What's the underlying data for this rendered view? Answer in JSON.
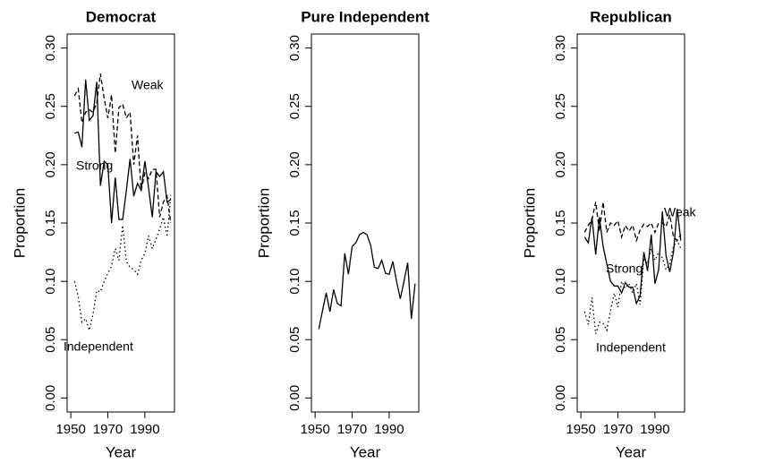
{
  "chart_data": [
    {
      "type": "line",
      "title": "Democrat",
      "xlabel": "Year",
      "ylabel": "Proportion",
      "x": [
        1952,
        1954,
        1956,
        1958,
        1960,
        1962,
        1964,
        1966,
        1968,
        1970,
        1972,
        1974,
        1976,
        1978,
        1980,
        1982,
        1984,
        1986,
        1988,
        1990,
        1992,
        1994,
        1996,
        1998,
        2000,
        2002,
        2004
      ],
      "xlim": [
        1948,
        2006
      ],
      "xticks": [
        1950,
        1970,
        1990
      ],
      "ylim": [
        -0.012,
        0.312
      ],
      "yticks": [
        {
          "value": 0,
          "label": "0.00"
        },
        {
          "value": 0.05,
          "label": "0.05"
        },
        {
          "value": 0.1,
          "label": "0.10"
        },
        {
          "value": 0.15,
          "label": "0.15"
        },
        {
          "value": 0.2,
          "label": "0.20"
        },
        {
          "value": 0.25,
          "label": "0.25"
        },
        {
          "value": 0.3,
          "label": "0.30"
        }
      ],
      "series": [
        {
          "name": "Weak",
          "color": "#000000",
          "linestyle": "dashed",
          "values": [
            0.259,
            0.265,
            0.236,
            0.245,
            0.247,
            0.245,
            0.253,
            0.278,
            0.257,
            0.24,
            0.26,
            0.21,
            0.249,
            0.252,
            0.24,
            0.245,
            0.2,
            0.225,
            0.178,
            0.193,
            0.188,
            0.196,
            0.196,
            0.155,
            0.168,
            0.173,
            0.15
          ]
        },
        {
          "name": "Strong",
          "color": "#000000",
          "linestyle": "solid",
          "values": [
            0.227,
            0.228,
            0.215,
            0.273,
            0.238,
            0.242,
            0.271,
            0.182,
            0.203,
            0.2,
            0.15,
            0.189,
            0.153,
            0.153,
            0.178,
            0.205,
            0.173,
            0.184,
            0.178,
            0.203,
            0.18,
            0.155,
            0.194,
            0.19,
            0.194,
            0.168,
            0.17
          ]
        },
        {
          "name": "Independent",
          "color": "#000000",
          "linestyle": "dotted",
          "values": [
            0.1,
            0.087,
            0.065,
            0.068,
            0.058,
            0.072,
            0.092,
            0.091,
            0.1,
            0.107,
            0.113,
            0.128,
            0.118,
            0.148,
            0.117,
            0.112,
            0.11,
            0.106,
            0.118,
            0.124,
            0.139,
            0.128,
            0.136,
            0.145,
            0.155,
            0.138,
            0.174
          ]
        }
      ]
    },
    {
      "type": "line",
      "title": "Pure Independent",
      "xlabel": "Year",
      "ylabel": "Proportion",
      "x": [
        1952,
        1954,
        1956,
        1958,
        1960,
        1962,
        1964,
        1966,
        1968,
        1970,
        1972,
        1974,
        1976,
        1978,
        1980,
        1982,
        1984,
        1986,
        1988,
        1990,
        1992,
        1994,
        1996,
        1998,
        2000,
        2002,
        2004
      ],
      "xlim": [
        1948,
        2006
      ],
      "xticks": [
        1950,
        1970,
        1990
      ],
      "ylim": [
        -0.012,
        0.312
      ],
      "yticks": [
        {
          "value": 0,
          "label": "0.00"
        },
        {
          "value": 0.05,
          "label": "0.05"
        },
        {
          "value": 0.1,
          "label": "0.10"
        },
        {
          "value": 0.15,
          "label": "0.15"
        },
        {
          "value": 0.2,
          "label": "0.20"
        },
        {
          "value": 0.25,
          "label": "0.25"
        },
        {
          "value": 0.3,
          "label": "0.30"
        }
      ],
      "series": [
        {
          "color": "#000000",
          "linestyle": "solid",
          "values": [
            0.059,
            0.075,
            0.09,
            0.074,
            0.093,
            0.081,
            0.079,
            0.124,
            0.106,
            0.13,
            0.133,
            0.14,
            0.142,
            0.14,
            0.131,
            0.112,
            0.111,
            0.118,
            0.107,
            0.106,
            0.117,
            0.1,
            0.085,
            0.1,
            0.116,
            0.068,
            0.098
          ]
        }
      ]
    },
    {
      "type": "line",
      "title": "Republican",
      "xlabel": "Year",
      "ylabel": "Proportion",
      "x": [
        1952,
        1954,
        1956,
        1958,
        1960,
        1962,
        1964,
        1966,
        1968,
        1970,
        1972,
        1974,
        1976,
        1978,
        1980,
        1982,
        1984,
        1986,
        1988,
        1990,
        1992,
        1994,
        1996,
        1998,
        2000,
        2002,
        2004
      ],
      "xlim": [
        1948,
        2006
      ],
      "xticks": [
        1950,
        1970,
        1990
      ],
      "ylim": [
        -0.012,
        0.312
      ],
      "yticks": [
        {
          "value": 0,
          "label": "0.00"
        },
        {
          "value": 0.05,
          "label": "0.05"
        },
        {
          "value": 0.1,
          "label": "0.10"
        },
        {
          "value": 0.15,
          "label": "0.15"
        },
        {
          "value": 0.2,
          "label": "0.20"
        },
        {
          "value": 0.25,
          "label": "0.25"
        },
        {
          "value": 0.3,
          "label": "0.30"
        }
      ],
      "series": [
        {
          "name": "Weak",
          "color": "#000000",
          "linestyle": "dashed",
          "values": [
            0.142,
            0.148,
            0.153,
            0.168,
            0.143,
            0.168,
            0.142,
            0.15,
            0.148,
            0.152,
            0.138,
            0.148,
            0.143,
            0.148,
            0.135,
            0.144,
            0.149,
            0.147,
            0.15,
            0.142,
            0.15,
            0.15,
            0.147,
            0.157,
            0.138,
            0.135,
            0.14
          ]
        },
        {
          "name": "Strong",
          "color": "#000000",
          "linestyle": "solid",
          "values": [
            0.138,
            0.133,
            0.155,
            0.123,
            0.155,
            0.13,
            0.115,
            0.1,
            0.096,
            0.096,
            0.09,
            0.099,
            0.095,
            0.095,
            0.081,
            0.088,
            0.125,
            0.109,
            0.14,
            0.098,
            0.11,
            0.16,
            0.122,
            0.108,
            0.125,
            0.162,
            0.135
          ]
        },
        {
          "name": "Independent",
          "color": "#000000",
          "linestyle": "dotted",
          "values": [
            0.074,
            0.063,
            0.086,
            0.055,
            0.065,
            0.064,
            0.058,
            0.075,
            0.09,
            0.078,
            0.1,
            0.094,
            0.098,
            0.09,
            0.098,
            0.08,
            0.12,
            0.115,
            0.128,
            0.118,
            0.125,
            0.12,
            0.11,
            0.115,
            0.13,
            0.135,
            0.128
          ]
        }
      ]
    }
  ]
}
